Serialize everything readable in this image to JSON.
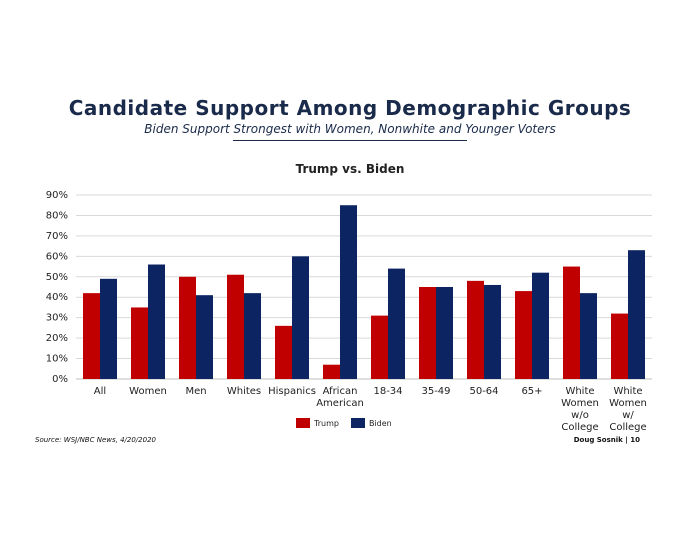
{
  "slide": {
    "title": "Candidate Support Among Demographic Groups",
    "subtitle": "Biden Support Strongest with Women, Nonwhite and Younger Voters",
    "source": "Source: WSJ/NBC News, 4/20/2020",
    "footer": "Doug Sosnik | 10"
  },
  "colors": {
    "trump": "#c00000",
    "biden": "#0c2461"
  },
  "chart_data": {
    "type": "bar",
    "title": "Trump vs. Biden",
    "xlabel": "",
    "ylabel": "",
    "ylim": [
      0,
      90
    ],
    "yticks": [
      "0%",
      "10%",
      "20%",
      "30%",
      "40%",
      "50%",
      "60%",
      "70%",
      "80%",
      "90%"
    ],
    "categories": [
      [
        "All"
      ],
      [
        "Women"
      ],
      [
        "Men"
      ],
      [
        "Whites"
      ],
      [
        "Hispanics"
      ],
      [
        "African",
        "American"
      ],
      [
        "18-34"
      ],
      [
        "35-49"
      ],
      [
        "50-64"
      ],
      [
        "65+"
      ],
      [
        "White",
        "Women",
        "w/o",
        "College"
      ],
      [
        "White",
        "Women",
        "w/",
        "College"
      ]
    ],
    "series": [
      {
        "name": "Trump",
        "values": [
          42,
          35,
          50,
          51,
          26,
          7,
          31,
          45,
          48,
          43,
          55,
          32
        ]
      },
      {
        "name": "Biden",
        "values": [
          49,
          56,
          41,
          42,
          60,
          85,
          54,
          45,
          46,
          52,
          42,
          63
        ]
      }
    ],
    "grid": true,
    "legend": "bottom"
  }
}
